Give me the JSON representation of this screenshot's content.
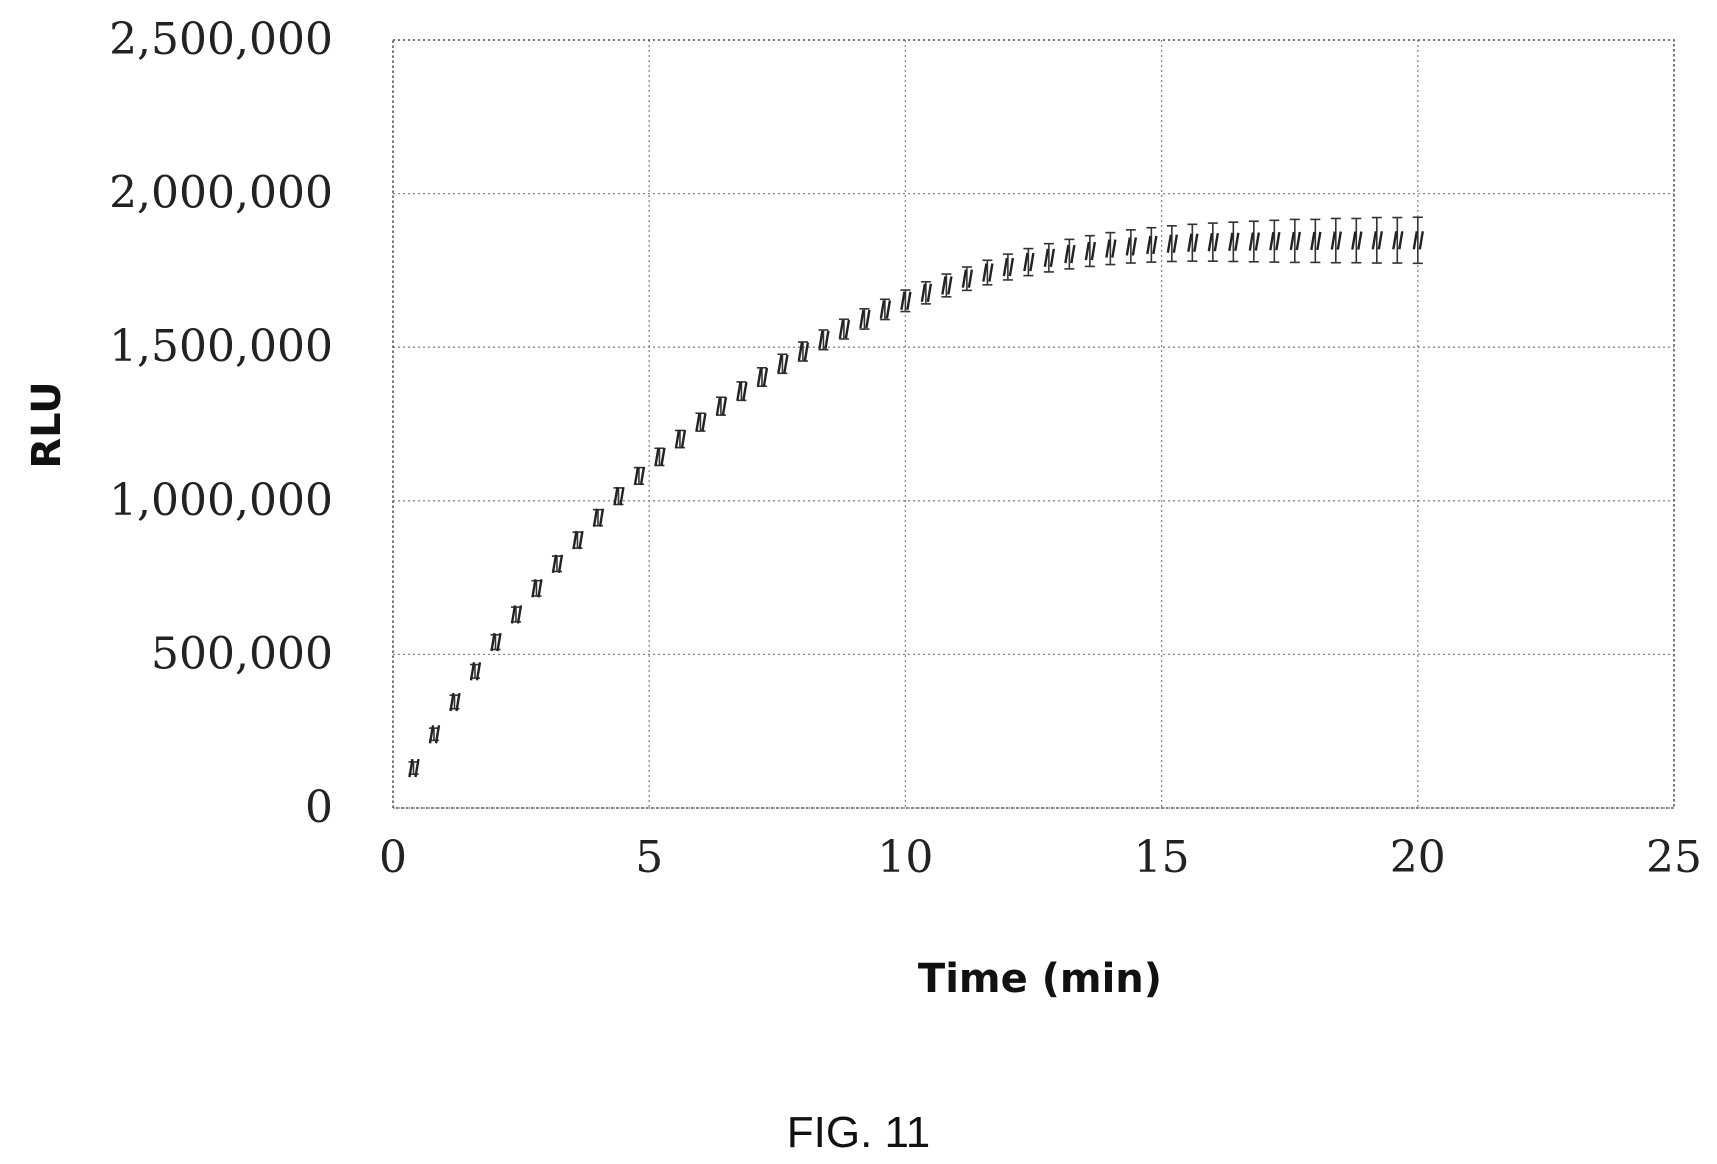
{
  "chart_data": {
    "type": "scatter",
    "title": "",
    "xlabel": "Time (min)",
    "ylabel": "RLU",
    "xlim": [
      0,
      25
    ],
    "ylim": [
      0,
      2500000
    ],
    "xticks": [
      0,
      5,
      10,
      15,
      20,
      25
    ],
    "yticks": [
      0,
      500000,
      1000000,
      1500000,
      2000000,
      2500000
    ],
    "xtick_labels": [
      "0",
      "5",
      "10",
      "15",
      "20",
      "25"
    ],
    "ytick_labels": [
      "0",
      "500,000",
      "1,000,000",
      "1,500,000",
      "2,000,000",
      "2,500,000"
    ],
    "grid": true,
    "error_bars": true,
    "series": [
      {
        "x": [
          0.4,
          0.8,
          1.2,
          1.6,
          2.0,
          2.4,
          2.8,
          3.2,
          3.6,
          4.0,
          4.4,
          4.8,
          5.2,
          5.6,
          6.0,
          6.4,
          6.8,
          7.2,
          7.6,
          8.0,
          8.4,
          8.8,
          9.2,
          9.6,
          10.0,
          10.4,
          10.8,
          11.2,
          11.6,
          12.0,
          12.4,
          12.8,
          13.2,
          13.6,
          14.0,
          14.4,
          14.8,
          15.2,
          15.6,
          16.0,
          16.4,
          16.8,
          17.2,
          17.6,
          18.0,
          18.4,
          18.8,
          19.2,
          19.6,
          20.0
        ],
        "y": [
          130000,
          240000,
          345000,
          445000,
          540000,
          630000,
          715000,
          795000,
          872000,
          945000,
          1015000,
          1081000,
          1143000,
          1201000,
          1256000,
          1308000,
          1357000,
          1403000,
          1446000,
          1486000,
          1524000,
          1559000,
          1592000,
          1623000,
          1651000,
          1677000,
          1701000,
          1723000,
          1743000,
          1761000,
          1777000,
          1791000,
          1803000,
          1813000,
          1821000,
          1828000,
          1833000,
          1837000,
          1840000,
          1842000,
          1843000,
          1844000,
          1845000,
          1846000,
          1846000,
          1847000,
          1847000,
          1848000,
          1848000,
          1848000
        ],
        "err": [
          20000,
          20000,
          22000,
          22000,
          24000,
          24000,
          25000,
          25000,
          26000,
          26000,
          27000,
          27000,
          28000,
          28000,
          29000,
          29000,
          30000,
          30000,
          31000,
          31000,
          32000,
          32000,
          33000,
          33000,
          35000,
          36000,
          37000,
          38000,
          40000,
          42000,
          44000,
          46000,
          48000,
          50000,
          52000,
          54000,
          56000,
          58000,
          60000,
          62000,
          64000,
          66000,
          68000,
          70000,
          70000,
          72000,
          72000,
          74000,
          74000,
          75000
        ]
      }
    ]
  },
  "caption": "FIG. 11"
}
